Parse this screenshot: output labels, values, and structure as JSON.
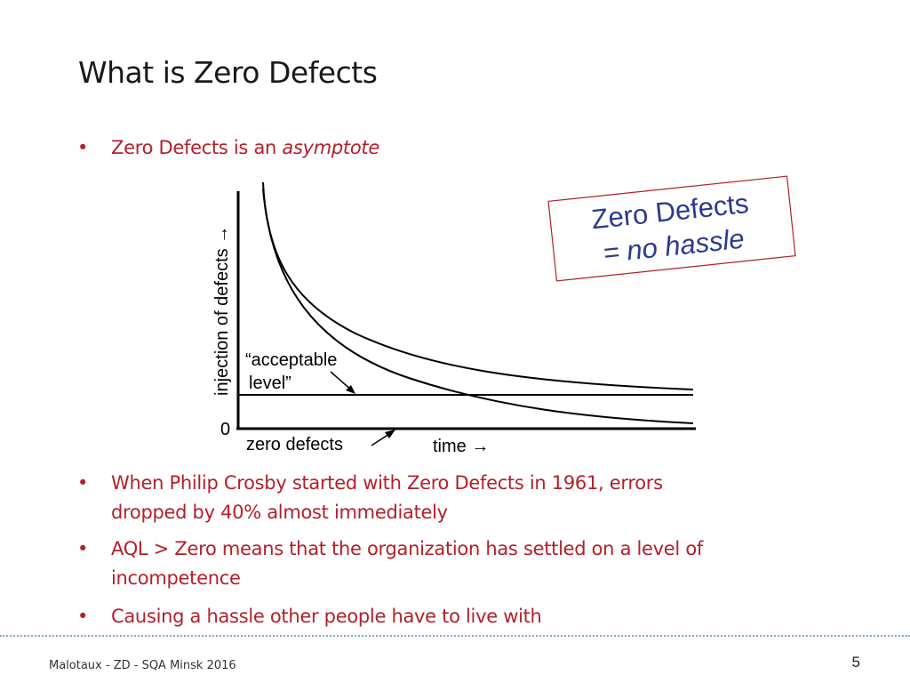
{
  "slide": {
    "title": "What is Zero Defects",
    "bullet_glyph": "•",
    "bullet1_text": "Zero Defects is an ",
    "bullet1_italic": "asymptote",
    "bullet2": "When Philip Crosby started with Zero Defects in 1961, errors dropped by 40% almost immediately",
    "bullet3": "AQL > Zero  means that the organization has settled on a level of incompetence",
    "bullet4": "Causing a hassle other people have to live with"
  },
  "diagram": {
    "y_axis_label": "injection of defects →",
    "x_axis_label": "time →",
    "zero_label": "0",
    "acceptable_label_line1": "“acceptable",
    "acceptable_label_line2": "level”",
    "zero_defects_label": "zero defects",
    "callout_line1": "Zero Defects",
    "callout_line2": "=  no hassle",
    "callout_text_color": "#2b3990",
    "callout_border_color": "#b3202a"
  },
  "footer": {
    "text": "Malotaux - ZD - SQA Minsk 2016",
    "page_number": "5"
  }
}
